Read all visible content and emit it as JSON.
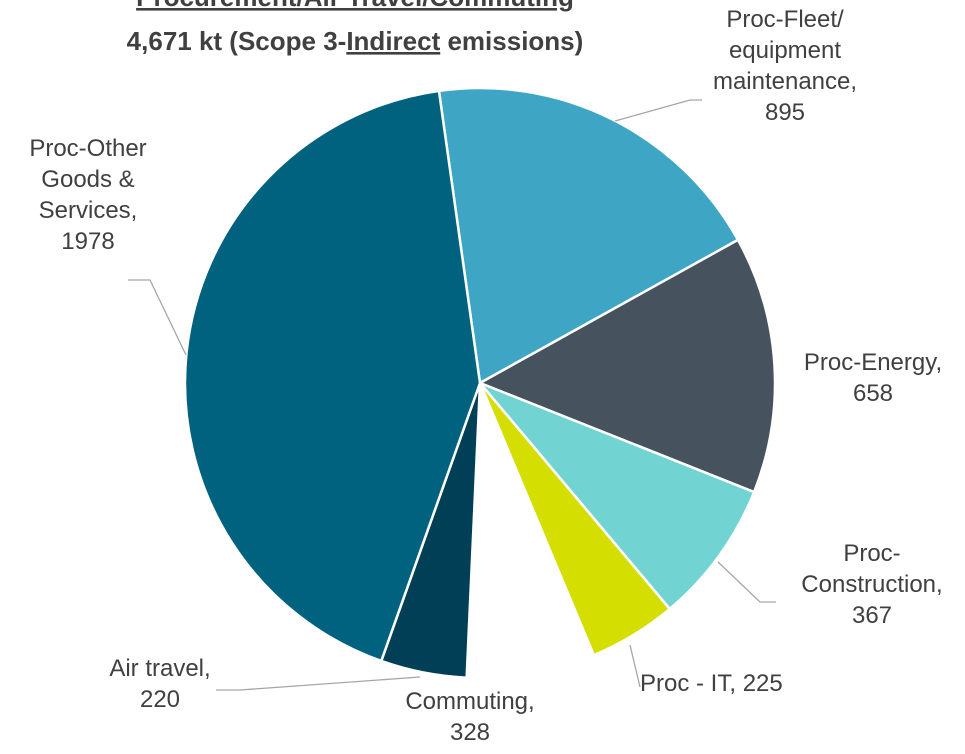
{
  "chart_data": {
    "type": "pie",
    "title": "Procurement/Air Travel/Commuting",
    "subtitle": [
      "4,671 kt (Scope 3-",
      "Indirect",
      " emissions)"
    ],
    "categories": [
      "Proc-Fleet/ equipment maintenance,",
      "Proc-Energy,",
      "Proc-Construction,",
      "Proc - IT,",
      "Commuting,",
      "Air travel,",
      "Proc-Other Goods & Services,"
    ],
    "values": [
      895,
      658,
      367,
      225,
      328,
      220,
      1978
    ],
    "colors": [
      "#3ea6c4",
      "#46535e",
      "#72d3d3",
      "#d4de00",
      "#ffffff",
      "#003f55",
      "#00627f"
    ]
  }
}
